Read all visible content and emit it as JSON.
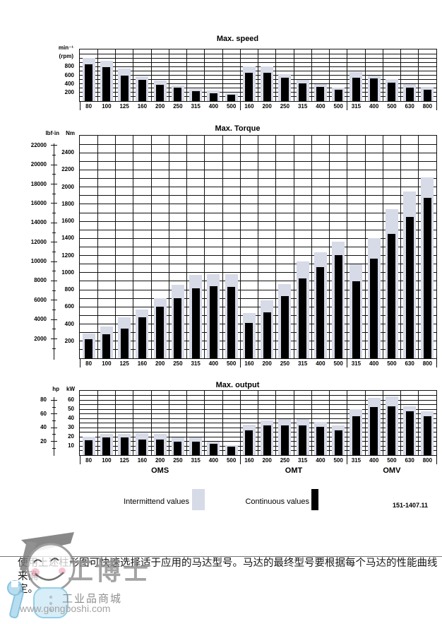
{
  "page": {
    "doc_number": "151-1407.11",
    "caption_line1": "使用上述柱形图可快速选择适于应用的马达型号。马达的最终型号要根据每个马达的性能曲线来确",
    "caption_line2": "定。"
  },
  "legend": {
    "intermittent_label": "Intermittend values",
    "continuous_label": "Continuous values",
    "intermittent_color": "#d7dae7",
    "continuous_color": "#000000"
  },
  "groups": [
    {
      "label": "OMS",
      "start": 0,
      "span": 9
    },
    {
      "label": "OMT",
      "start": 9,
      "span": 6
    },
    {
      "label": "OMV",
      "start": 15,
      "span": 5
    }
  ],
  "watermark": {
    "brand": "工博士",
    "tagline": "工业品商城",
    "url": "www.gongboshi.com"
  },
  "chart_data": [
    {
      "type": "bar",
      "title": "Max. speed",
      "unit_labels": [
        "min⁻¹",
        "(rpm)"
      ],
      "ymax": 1200,
      "grid_step": 100,
      "ytick_step": 200,
      "ytick_max": 800,
      "grid": true,
      "legend_position": "below-page",
      "categories": [
        "80",
        "100",
        "125",
        "160",
        "200",
        "250",
        "315",
        "400",
        "500",
        "160",
        "200",
        "250",
        "315",
        "400",
        "500",
        "315",
        "400",
        "500",
        "630",
        "800"
      ],
      "series": [
        {
          "name": "Intermittend values",
          "color": "#d7dae7",
          "values": [
            1000,
            940,
            750,
            580,
            470,
            370,
            285,
            240,
            185,
            800,
            810,
            630,
            490,
            390,
            320,
            670,
            600,
            510,
            400,
            330
          ]
        },
        {
          "name": "Continuous values",
          "color": "#000000",
          "values": [
            850,
            785,
            600,
            500,
            375,
            305,
            230,
            175,
            150,
            660,
            660,
            540,
            410,
            330,
            260,
            540,
            520,
            430,
            320,
            260
          ]
        }
      ]
    },
    {
      "type": "bar",
      "title": "Max. Torque",
      "unit_inner": "Nm",
      "unit_outer": "lbf·in",
      "ymax": 2600,
      "grid_step": 100,
      "ytick_step": 200,
      "ytick_max": 2400,
      "grid": true,
      "outer_axis": {
        "unit": "lbf·in",
        "label_step": 2000,
        "tick_step": 1000,
        "max_label": 22000,
        "inner_per_outer": 0.113
      },
      "categories": [
        "80",
        "100",
        "125",
        "160",
        "200",
        "250",
        "315",
        "400",
        "500",
        "160",
        "200",
        "250",
        "315",
        "400",
        "500",
        "315",
        "400",
        "500",
        "630",
        "800"
      ],
      "series": [
        {
          "name": "Intermittend values",
          "color": "#d7dae7",
          "values": [
            290,
            370,
            480,
            570,
            700,
            860,
            970,
            980,
            980,
            530,
            680,
            865,
            1130,
            1240,
            1360,
            1100,
            1400,
            1740,
            1950,
            2110
          ]
        },
        {
          "name": "Continuous values",
          "color": "#000000",
          "values": [
            220,
            280,
            350,
            480,
            600,
            700,
            815,
            840,
            835,
            415,
            535,
            730,
            935,
            1065,
            1205,
            900,
            1160,
            1450,
            1650,
            1870
          ]
        }
      ]
    },
    {
      "type": "bar",
      "title": "Max. output",
      "unit_inner": "kW",
      "unit_outer": "hp",
      "ymax": 70,
      "grid_step": 5,
      "ytick_step": 10,
      "ytick_max": 60,
      "grid": true,
      "outer_axis": {
        "unit": "hp",
        "label_step": 20,
        "tick_step": 10,
        "max_label": 80,
        "inner_per_outer": 0.7457
      },
      "categories": [
        "80",
        "100",
        "125",
        "160",
        "200",
        "250",
        "315",
        "400",
        "500",
        "160",
        "200",
        "250",
        "315",
        "400",
        "500",
        "315",
        "400",
        "500",
        "630",
        "800"
      ],
      "series": [
        {
          "name": "Intermittend values",
          "color": "#d7dae7",
          "values": [
            20,
            23,
            23,
            24,
            23,
            19,
            19,
            15,
            11,
            33,
            38,
            39,
            39,
            36,
            32,
            50,
            62,
            64,
            53,
            48
          ]
        },
        {
          "name": "Continuous values",
          "color": "#000000",
          "values": [
            16,
            19,
            19,
            17,
            17,
            15,
            15,
            12,
            9,
            27,
            32,
            32,
            32,
            31,
            27,
            42,
            52,
            53,
            48,
            42
          ]
        }
      ]
    }
  ]
}
